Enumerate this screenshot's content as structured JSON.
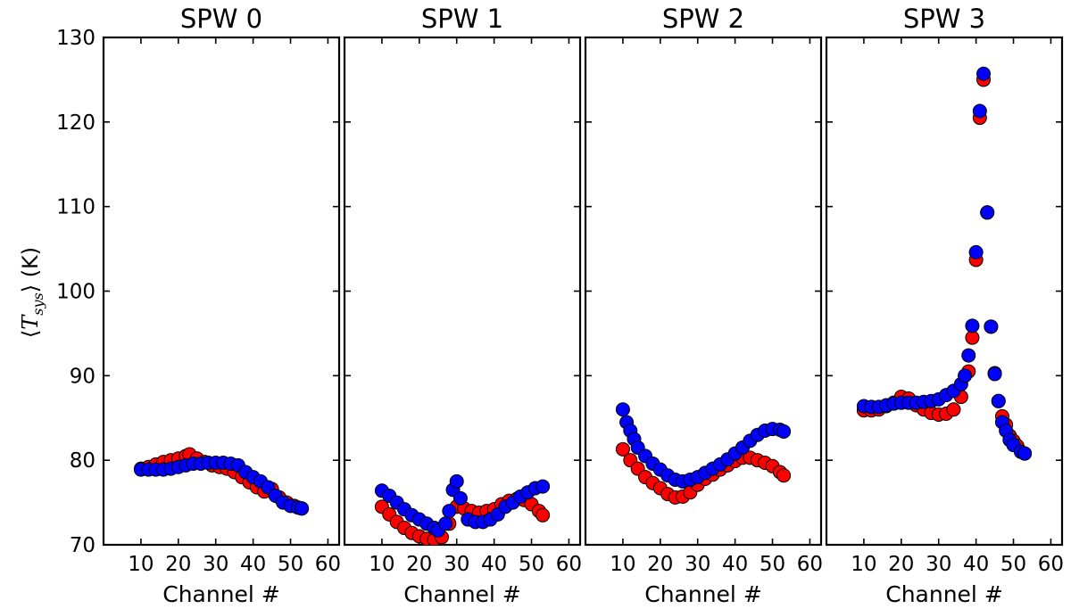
{
  "chart_data": {
    "type": "scatter",
    "ylabel": "⟨T_sys⟩ (K)",
    "ylim": [
      70,
      130
    ],
    "yticks": [
      "70",
      "80",
      "90",
      "100",
      "110",
      "120",
      "130"
    ],
    "xlim": [
      0,
      63
    ],
    "xticks": [
      "10",
      "20",
      "30",
      "40",
      "50",
      "60"
    ],
    "xlabel": "Channel #",
    "series_colors": {
      "red": "#ff0000",
      "blue": "#0000ff"
    },
    "panels": [
      {
        "title": "SPW 0",
        "red": [
          [
            10,
            79
          ],
          [
            12,
            79.2
          ],
          [
            14,
            79.5
          ],
          [
            16,
            79.8
          ],
          [
            18,
            80
          ],
          [
            20,
            80.2
          ],
          [
            22,
            80.5
          ],
          [
            23,
            80.7
          ],
          [
            25,
            80.2
          ],
          [
            27,
            79.8
          ],
          [
            29,
            79.4
          ],
          [
            31,
            79.2
          ],
          [
            33,
            79
          ],
          [
            35,
            78.6
          ],
          [
            37,
            78
          ],
          [
            39,
            77.4
          ],
          [
            41,
            76.8
          ],
          [
            43,
            76.3
          ],
          [
            45,
            76.6
          ],
          [
            47,
            75.6
          ],
          [
            49,
            75
          ],
          [
            51,
            74.6
          ],
          [
            53,
            74.3
          ]
        ],
        "blue": [
          [
            10,
            78.9
          ],
          [
            12,
            78.9
          ],
          [
            14,
            78.9
          ],
          [
            16,
            78.9
          ],
          [
            18,
            79
          ],
          [
            20,
            79.2
          ],
          [
            22,
            79.4
          ],
          [
            24,
            79.6
          ],
          [
            26,
            79.6
          ],
          [
            28,
            79.7
          ],
          [
            30,
            79.7
          ],
          [
            32,
            79.7
          ],
          [
            34,
            79.6
          ],
          [
            36,
            79.4
          ],
          [
            38,
            78.6
          ],
          [
            40,
            78
          ],
          [
            42,
            77.5
          ],
          [
            44,
            76.8
          ],
          [
            46,
            75.8
          ],
          [
            48,
            75
          ],
          [
            50,
            74.6
          ],
          [
            52,
            74.4
          ],
          [
            53,
            74.3
          ]
        ]
      },
      {
        "title": "SPW 1",
        "red": [
          [
            10,
            74.5
          ],
          [
            12,
            73.6
          ],
          [
            14,
            72.7
          ],
          [
            16,
            72
          ],
          [
            18,
            71.4
          ],
          [
            20,
            71
          ],
          [
            22,
            70.7
          ],
          [
            24,
            70.6
          ],
          [
            26,
            70.9
          ],
          [
            28,
            72.5
          ],
          [
            30,
            74.5
          ],
          [
            32,
            74.3
          ],
          [
            34,
            74
          ],
          [
            36,
            73.8
          ],
          [
            38,
            74
          ],
          [
            40,
            74.2
          ],
          [
            42,
            74.8
          ],
          [
            44,
            75.2
          ],
          [
            46,
            75.4
          ],
          [
            48,
            75.3
          ],
          [
            50,
            74.8
          ],
          [
            52,
            74
          ],
          [
            53,
            73.5
          ]
        ],
        "blue": [
          [
            10,
            76.4
          ],
          [
            12,
            75.8
          ],
          [
            14,
            75
          ],
          [
            16,
            74.2
          ],
          [
            18,
            73.5
          ],
          [
            20,
            73
          ],
          [
            22,
            72.5
          ],
          [
            24,
            72
          ],
          [
            25,
            71.7
          ],
          [
            27,
            72.5
          ],
          [
            28,
            74
          ],
          [
            29,
            76.5
          ],
          [
            30,
            77.5
          ],
          [
            31,
            75.5
          ],
          [
            33,
            73
          ],
          [
            35,
            72.7
          ],
          [
            37,
            72.7
          ],
          [
            39,
            73
          ],
          [
            41,
            73.6
          ],
          [
            43,
            74.5
          ],
          [
            45,
            75
          ],
          [
            47,
            75.7
          ],
          [
            49,
            76.2
          ],
          [
            51,
            76.7
          ],
          [
            53,
            76.9
          ]
        ]
      },
      {
        "title": "SPW 2",
        "red": [
          [
            10,
            81.3
          ],
          [
            12,
            80
          ],
          [
            14,
            79
          ],
          [
            16,
            78
          ],
          [
            18,
            77.3
          ],
          [
            20,
            76.7
          ],
          [
            22,
            76
          ],
          [
            24,
            75.6
          ],
          [
            26,
            75.7
          ],
          [
            28,
            76.2
          ],
          [
            30,
            77.1
          ],
          [
            32,
            77.8
          ],
          [
            34,
            78.3
          ],
          [
            36,
            78.9
          ],
          [
            38,
            79.4
          ],
          [
            40,
            79.9
          ],
          [
            42,
            80.3
          ],
          [
            44,
            80.3
          ],
          [
            46,
            80
          ],
          [
            48,
            79.7
          ],
          [
            50,
            79.3
          ],
          [
            52,
            78.6
          ],
          [
            53,
            78.2
          ]
        ],
        "blue": [
          [
            10,
            86
          ],
          [
            11,
            84.5
          ],
          [
            12,
            83.5
          ],
          [
            13,
            82.5
          ],
          [
            14,
            81.5
          ],
          [
            16,
            80.5
          ],
          [
            18,
            79.6
          ],
          [
            20,
            78.9
          ],
          [
            22,
            78.2
          ],
          [
            24,
            77.7
          ],
          [
            26,
            77.5
          ],
          [
            28,
            77.7
          ],
          [
            30,
            78
          ],
          [
            32,
            78.5
          ],
          [
            34,
            79
          ],
          [
            36,
            79.5
          ],
          [
            38,
            80.1
          ],
          [
            40,
            80.8
          ],
          [
            42,
            81.5
          ],
          [
            44,
            82.3
          ],
          [
            46,
            83
          ],
          [
            48,
            83.5
          ],
          [
            50,
            83.7
          ],
          [
            52,
            83.6
          ],
          [
            53,
            83.4
          ]
        ]
      },
      {
        "title": "SPW 3",
        "red": [
          [
            10,
            85.9
          ],
          [
            12,
            85.9
          ],
          [
            14,
            86
          ],
          [
            16,
            86.4
          ],
          [
            18,
            86.8
          ],
          [
            20,
            87.5
          ],
          [
            22,
            87.3
          ],
          [
            24,
            86.5
          ],
          [
            26,
            86
          ],
          [
            28,
            85.6
          ],
          [
            30,
            85.4
          ],
          [
            32,
            85.5
          ],
          [
            34,
            86
          ],
          [
            36,
            87.5
          ],
          [
            38,
            90.5
          ],
          [
            39,
            94.5
          ],
          [
            40,
            103.7
          ],
          [
            41,
            120.5
          ],
          [
            42,
            125
          ],
          [
            43,
            109.3
          ],
          [
            44,
            95.8
          ],
          [
            45,
            90.3
          ],
          [
            46,
            87
          ],
          [
            47,
            85.2
          ],
          [
            48,
            84.2
          ],
          [
            49,
            82.9
          ],
          [
            50,
            82.3
          ],
          [
            51,
            81.7
          ],
          [
            53,
            80.8
          ]
        ],
        "blue": [
          [
            10,
            86.4
          ],
          [
            12,
            86.3
          ],
          [
            14,
            86.3
          ],
          [
            16,
            86.5
          ],
          [
            18,
            86.7
          ],
          [
            20,
            86.8
          ],
          [
            22,
            86.8
          ],
          [
            24,
            86.8
          ],
          [
            26,
            86.9
          ],
          [
            28,
            87
          ],
          [
            30,
            87.2
          ],
          [
            32,
            87.7
          ],
          [
            34,
            88.2
          ],
          [
            36,
            89
          ],
          [
            37,
            90
          ],
          [
            38,
            92.4
          ],
          [
            39,
            95.9
          ],
          [
            40,
            104.6
          ],
          [
            41,
            121.3
          ],
          [
            42,
            125.7
          ],
          [
            43,
            109.3
          ],
          [
            44,
            95.8
          ],
          [
            45,
            90.2
          ],
          [
            46,
            87
          ],
          [
            47,
            84.5
          ],
          [
            48,
            83.5
          ],
          [
            49,
            82.4
          ],
          [
            50,
            81.8
          ],
          [
            52,
            81
          ],
          [
            53,
            80.8
          ]
        ]
      }
    ]
  }
}
